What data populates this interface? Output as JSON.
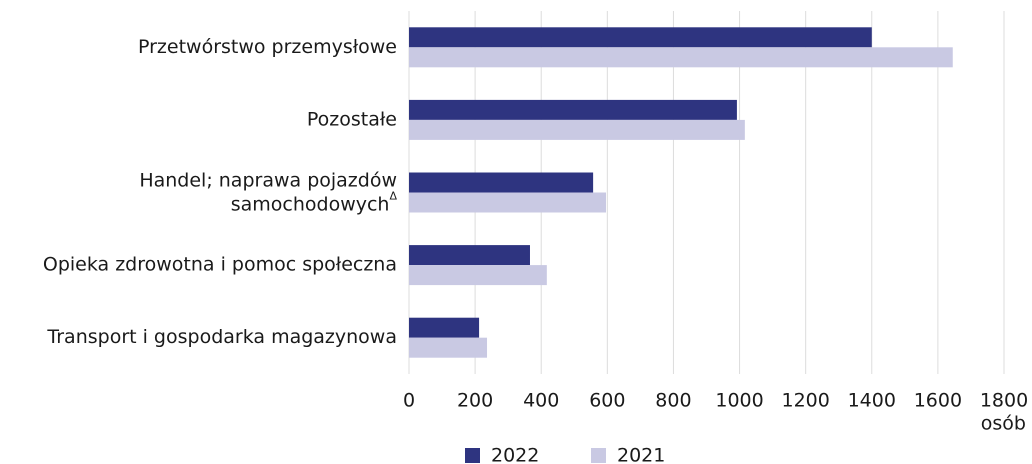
{
  "chart_data": {
    "type": "hbar",
    "categories": [
      "Przetwórstwo przemysłowe",
      "Pozostałe",
      "Handel; naprawa pojazdów samochodowychΔ",
      "Opieka zdrowotna i pomoc społeczna",
      "Transport i gospodarka magazynowa"
    ],
    "series": [
      {
        "name": "2022",
        "color": "#2e3480",
        "values": [
          1400,
          992,
          557,
          366,
          212
        ]
      },
      {
        "name": "2021",
        "color": "#c9c9e3",
        "values": [
          1645,
          1016,
          596,
          417,
          236
        ]
      }
    ],
    "xlim": [
      0,
      1800
    ],
    "xticks": [
      0,
      200,
      400,
      600,
      800,
      1000,
      1200,
      1400,
      1600,
      1800
    ],
    "xlabel": "osób",
    "grid": true,
    "legend": "bottom"
  }
}
